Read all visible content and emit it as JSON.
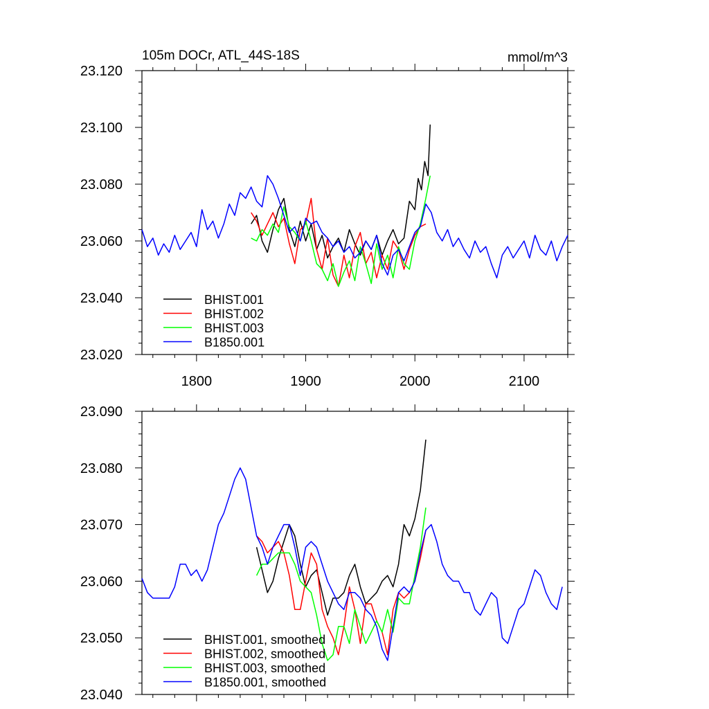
{
  "chart_data": [
    {
      "type": "line",
      "title": "105m DOCr, ATL_44S-18S",
      "units": "mmol/m^3",
      "xlim": [
        1750,
        2140
      ],
      "ylim": [
        23.02,
        23.12
      ],
      "xticks": [
        1800,
        1900,
        2000,
        2100
      ],
      "xtick_labels": [
        "1800",
        "1900",
        "2000",
        "2100"
      ],
      "yticks": [
        23.02,
        23.04,
        23.06,
        23.08,
        23.1,
        23.12
      ],
      "ytick_labels": [
        "23.020",
        "23.040",
        "23.060",
        "23.080",
        "23.100",
        "23.120"
      ],
      "legend_position": "bottom-left",
      "series": [
        {
          "name": "BHIST.001",
          "color": "#000000",
          "x": [
            1850,
            1855,
            1860,
            1865,
            1870,
            1875,
            1880,
            1885,
            1890,
            1895,
            1900,
            1905,
            1910,
            1915,
            1920,
            1925,
            1930,
            1935,
            1940,
            1945,
            1950,
            1955,
            1960,
            1965,
            1970,
            1975,
            1980,
            1985,
            1990,
            1995,
            2000,
            2003,
            2006,
            2009,
            2012,
            2014
          ],
          "y": [
            23.066,
            23.069,
            23.06,
            23.056,
            23.064,
            23.071,
            23.075,
            23.064,
            23.058,
            23.067,
            23.06,
            23.066,
            23.057,
            23.062,
            23.054,
            23.058,
            23.061,
            23.056,
            23.064,
            23.059,
            23.055,
            23.06,
            23.057,
            23.062,
            23.055,
            23.06,
            23.064,
            23.059,
            23.061,
            23.074,
            23.071,
            23.082,
            23.078,
            23.088,
            23.083,
            23.101
          ]
        },
        {
          "name": "BHIST.002",
          "color": "#ff0000",
          "x": [
            1850,
            1855,
            1860,
            1865,
            1870,
            1875,
            1880,
            1885,
            1890,
            1895,
            1900,
            1905,
            1910,
            1915,
            1920,
            1925,
            1930,
            1935,
            1940,
            1945,
            1950,
            1955,
            1960,
            1965,
            1970,
            1975,
            1980,
            1985,
            1990,
            1995,
            2000,
            2005,
            2010
          ],
          "y": [
            23.07,
            23.067,
            23.062,
            23.066,
            23.07,
            23.065,
            23.068,
            23.059,
            23.052,
            23.064,
            23.066,
            23.075,
            23.057,
            23.05,
            23.061,
            23.048,
            23.044,
            23.055,
            23.047,
            23.058,
            23.063,
            23.052,
            23.056,
            23.047,
            23.055,
            23.05,
            23.06,
            23.057,
            23.05,
            23.057,
            23.062,
            23.065,
            23.066
          ]
        },
        {
          "name": "BHIST.003",
          "color": "#00ff00",
          "x": [
            1850,
            1855,
            1860,
            1865,
            1870,
            1875,
            1880,
            1885,
            1890,
            1895,
            1900,
            1905,
            1910,
            1915,
            1920,
            1925,
            1930,
            1935,
            1940,
            1945,
            1950,
            1955,
            1960,
            1965,
            1970,
            1975,
            1980,
            1985,
            1990,
            1995,
            2000,
            2005,
            2010,
            2014
          ],
          "y": [
            23.061,
            23.06,
            23.064,
            23.062,
            23.066,
            23.063,
            23.072,
            23.065,
            23.063,
            23.06,
            23.067,
            23.06,
            23.052,
            23.05,
            23.046,
            23.052,
            23.044,
            23.049,
            23.053,
            23.046,
            23.058,
            23.052,
            23.045,
            23.059,
            23.05,
            23.055,
            23.047,
            23.058,
            23.052,
            23.05,
            23.06,
            23.066,
            23.075,
            23.083
          ]
        },
        {
          "name": "B1850.001",
          "color": "#0000ff",
          "x": [
            1750,
            1755,
            1760,
            1765,
            1770,
            1775,
            1780,
            1785,
            1790,
            1795,
            1800,
            1805,
            1810,
            1815,
            1820,
            1825,
            1830,
            1835,
            1840,
            1845,
            1850,
            1855,
            1860,
            1865,
            1870,
            1875,
            1880,
            1885,
            1890,
            1895,
            1900,
            1905,
            1910,
            1915,
            1920,
            1925,
            1930,
            1935,
            1940,
            1945,
            1950,
            1955,
            1960,
            1965,
            1970,
            1975,
            1980,
            1985,
            1990,
            1995,
            2000,
            2005,
            2010,
            2015,
            2020,
            2025,
            2030,
            2035,
            2040,
            2045,
            2050,
            2055,
            2060,
            2065,
            2070,
            2075,
            2080,
            2085,
            2090,
            2095,
            2100,
            2105,
            2110,
            2115,
            2120,
            2125,
            2130,
            2135,
            2140
          ],
          "y": [
            23.064,
            23.058,
            23.061,
            23.055,
            23.059,
            23.056,
            23.062,
            23.057,
            23.06,
            23.063,
            23.058,
            23.071,
            23.064,
            23.067,
            23.061,
            23.066,
            23.073,
            23.069,
            23.077,
            23.075,
            23.079,
            23.074,
            23.072,
            23.083,
            23.08,
            23.075,
            23.069,
            23.063,
            23.065,
            23.06,
            23.068,
            23.066,
            23.067,
            23.063,
            23.061,
            23.058,
            23.06,
            23.056,
            23.058,
            23.054,
            23.056,
            23.06,
            23.057,
            23.062,
            23.052,
            23.048,
            23.055,
            23.057,
            23.053,
            23.058,
            23.063,
            23.065,
            23.073,
            23.07,
            23.063,
            23.06,
            23.064,
            23.058,
            23.061,
            23.057,
            23.054,
            23.06,
            23.056,
            23.058,
            23.052,
            23.047,
            23.055,
            23.058,
            23.054,
            23.057,
            23.06,
            23.054,
            23.062,
            23.057,
            23.055,
            23.06,
            23.053,
            23.058,
            23.062
          ]
        }
      ]
    },
    {
      "type": "line",
      "title": "",
      "xlim": [
        1750,
        2140
      ],
      "ylim": [
        23.04,
        23.09
      ],
      "xticks": [
        1800,
        1900,
        2000,
        2100
      ],
      "yticks": [
        23.04,
        23.05,
        23.06,
        23.07,
        23.08,
        23.09
      ],
      "ytick_labels": [
        "23.040",
        "23.050",
        "23.060",
        "23.070",
        "23.080",
        "23.090"
      ],
      "legend_position": "bottom-left",
      "series": [
        {
          "name": "BHIST.001, smoothed",
          "color": "#000000",
          "x": [
            1855,
            1860,
            1865,
            1870,
            1875,
            1880,
            1885,
            1890,
            1895,
            1900,
            1905,
            1910,
            1915,
            1920,
            1925,
            1930,
            1935,
            1940,
            1945,
            1950,
            1955,
            1960,
            1965,
            1970,
            1975,
            1980,
            1985,
            1990,
            1995,
            2000,
            2005,
            2010
          ],
          "y": [
            23.066,
            23.062,
            23.058,
            23.06,
            23.064,
            23.067,
            23.07,
            23.068,
            23.063,
            23.059,
            23.061,
            23.062,
            23.058,
            23.054,
            23.057,
            23.057,
            23.058,
            23.061,
            23.063,
            23.059,
            23.056,
            23.057,
            23.058,
            23.06,
            23.061,
            23.059,
            23.063,
            23.07,
            23.068,
            23.071,
            23.076,
            23.085
          ]
        },
        {
          "name": "BHIST.002, smoothed",
          "color": "#ff0000",
          "x": [
            1855,
            1860,
            1865,
            1870,
            1875,
            1880,
            1885,
            1890,
            1895,
            1900,
            1905,
            1910,
            1915,
            1920,
            1925,
            1930,
            1935,
            1940,
            1945,
            1950,
            1955,
            1960,
            1965,
            1970,
            1975,
            1980,
            1985,
            1990,
            1995,
            2000,
            2005,
            2010
          ],
          "y": [
            23.068,
            23.067,
            23.065,
            23.066,
            23.067,
            23.065,
            23.061,
            23.055,
            23.055,
            23.06,
            23.065,
            23.063,
            23.055,
            23.052,
            23.05,
            23.047,
            23.052,
            23.059,
            23.055,
            23.049,
            23.056,
            23.056,
            23.053,
            23.051,
            23.047,
            23.055,
            23.058,
            23.057,
            23.058,
            23.06,
            23.064,
            23.069
          ]
        },
        {
          "name": "BHIST.003, smoothed",
          "color": "#00ff00",
          "x": [
            1855,
            1860,
            1865,
            1870,
            1875,
            1880,
            1885,
            1890,
            1895,
            1900,
            1905,
            1910,
            1915,
            1920,
            1925,
            1930,
            1935,
            1940,
            1945,
            1950,
            1955,
            1960,
            1965,
            1970,
            1975,
            1980,
            1985,
            1990,
            1995,
            2000,
            2005,
            2010
          ],
          "y": [
            23.061,
            23.063,
            23.063,
            23.064,
            23.065,
            23.065,
            23.065,
            23.063,
            23.06,
            23.059,
            23.058,
            23.054,
            23.049,
            23.046,
            23.047,
            23.052,
            23.052,
            23.049,
            23.055,
            23.052,
            23.049,
            23.051,
            23.053,
            23.051,
            23.055,
            23.051,
            23.057,
            23.056,
            23.056,
            23.061,
            23.066,
            23.073
          ]
        },
        {
          "name": "B1850.001, smoothed",
          "color": "#0000ff",
          "x": [
            1750,
            1755,
            1760,
            1765,
            1770,
            1775,
            1780,
            1785,
            1790,
            1795,
            1800,
            1805,
            1810,
            1815,
            1820,
            1825,
            1830,
            1835,
            1840,
            1845,
            1850,
            1855,
            1860,
            1865,
            1870,
            1875,
            1880,
            1885,
            1890,
            1895,
            1900,
            1905,
            1910,
            1915,
            1920,
            1925,
            1930,
            1935,
            1940,
            1945,
            1950,
            1955,
            1960,
            1965,
            1970,
            1975,
            1980,
            1985,
            1990,
            1995,
            2000,
            2005,
            2010,
            2015,
            2020,
            2025,
            2030,
            2035,
            2040,
            2045,
            2050,
            2055,
            2060,
            2065,
            2070,
            2075,
            2080,
            2085,
            2090,
            2095,
            2100,
            2105,
            2110,
            2115,
            2120,
            2125,
            2130,
            2135
          ],
          "y": [
            23.0605,
            23.058,
            23.057,
            23.057,
            23.057,
            23.057,
            23.059,
            23.063,
            23.063,
            23.061,
            23.062,
            23.06,
            23.062,
            23.066,
            23.07,
            23.072,
            23.075,
            23.078,
            23.08,
            23.078,
            23.073,
            23.068,
            23.066,
            23.063,
            23.066,
            23.068,
            23.07,
            23.07,
            23.066,
            23.061,
            23.066,
            23.067,
            23.066,
            23.063,
            23.06,
            23.058,
            23.056,
            23.055,
            23.058,
            23.058,
            23.057,
            23.055,
            23.054,
            23.052,
            23.048,
            23.046,
            23.052,
            23.058,
            23.059,
            23.058,
            23.06,
            23.065,
            23.069,
            23.07,
            23.067,
            23.063,
            23.061,
            23.06,
            23.06,
            23.058,
            23.058,
            23.055,
            23.054,
            23.056,
            23.058,
            23.057,
            23.05,
            23.049,
            23.052,
            23.055,
            23.056,
            23.059,
            23.062,
            23.061,
            23.058,
            23.056,
            23.055,
            23.059
          ]
        }
      ]
    }
  ]
}
